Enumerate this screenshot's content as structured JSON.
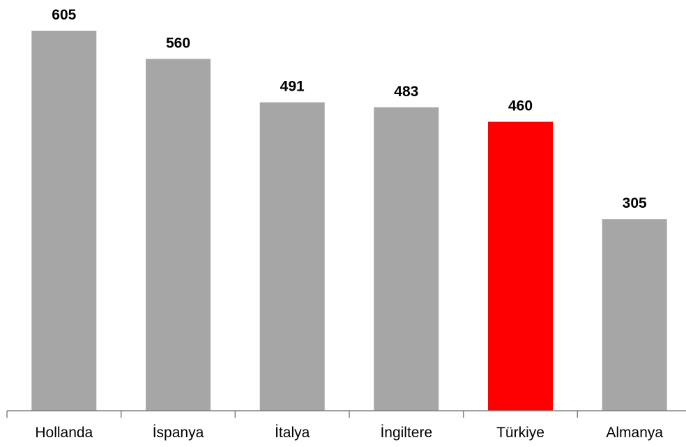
{
  "chart_data": {
    "type": "bar",
    "categories": [
      "Hollanda",
      "İspanya",
      "İtalya",
      "İngiltere",
      "Türkiye",
      "Almanya"
    ],
    "values": [
      605,
      560,
      491,
      483,
      460,
      305
    ],
    "bar_colors": [
      "#a6a6a6",
      "#a6a6a6",
      "#a6a6a6",
      "#a6a6a6",
      "#ff0000",
      "#a6a6a6"
    ],
    "highlight_category": "Türkiye",
    "ylim": [
      0,
      650
    ],
    "grid": false,
    "legend": "none",
    "show_y_axis": false,
    "data_labels": true
  }
}
